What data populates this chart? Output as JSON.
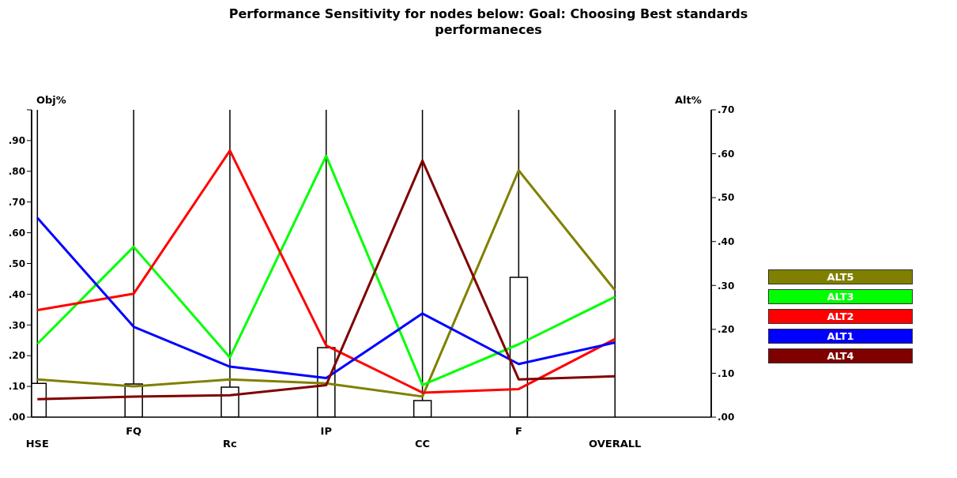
{
  "chart_data": {
    "type": "line",
    "title": "Performance Sensitivity for nodes below: Goal: Choosing Best standards performaneces",
    "ylabel": "Obj%",
    "y2label": "Alt%",
    "categories": [
      "HSE",
      "FQ",
      "Rc",
      "IP",
      "CC",
      "F",
      "OVERALL"
    ],
    "ylim": [
      0,
      1
    ],
    "yticks": [
      {
        "value": 0,
        "label": ".00"
      },
      {
        "value": 0.1,
        "label": ".10"
      },
      {
        "value": 0.2,
        "label": ".20"
      },
      {
        "value": 0.3,
        "label": ".30"
      },
      {
        "value": 0.4,
        "label": ".40"
      },
      {
        "value": 0.5,
        "label": ".50"
      },
      {
        "value": 0.6,
        "label": ".60"
      },
      {
        "value": 0.7,
        "label": ".70"
      },
      {
        "value": 0.8,
        "label": ".80"
      },
      {
        "value": 0.9,
        "label": ".90"
      },
      {
        "value": 1,
        "label": null
      }
    ],
    "y2lim": [
      0,
      0.7
    ],
    "y2ticks": [
      {
        "value": 0,
        "label": ".00"
      },
      {
        "value": 0.1,
        "label": ".10"
      },
      {
        "value": 0.2,
        "label": ".20"
      },
      {
        "value": 0.3,
        "label": ".30"
      },
      {
        "value": 0.4,
        "label": ".40"
      },
      {
        "value": 0.5,
        "label": ".50"
      },
      {
        "value": 0.6,
        "label": ".60"
      },
      {
        "value": 0.7,
        "label": ".70"
      }
    ],
    "grid": "x",
    "legend": "right",
    "marker": "none",
    "series": [
      {
        "type": "bar",
        "color": "#ffffff",
        "values": [
          0.11,
          0.108,
          0.098,
          0.226,
          0.054,
          0.455,
          null
        ]
      },
      {
        "axis": "y2",
        "name": "ALT5",
        "color": "#808000",
        "values": [
          0.086,
          0.07,
          0.086,
          0.077,
          0.047,
          0.562,
          0.289
        ]
      },
      {
        "axis": "y2",
        "name": "ALT3",
        "color": "#00ff00",
        "values": [
          0.167,
          0.388,
          0.136,
          0.595,
          0.073,
          0.166,
          0.274
        ]
      },
      {
        "axis": "y2",
        "name": "ALT2",
        "color": "#ff0000",
        "values": [
          0.244,
          0.281,
          0.607,
          0.163,
          0.056,
          0.064,
          0.178
        ]
      },
      {
        "axis": "y2",
        "name": "ALT1",
        "color": "#0000ff",
        "values": [
          0.454,
          0.206,
          0.115,
          0.089,
          0.236,
          0.121,
          0.17
        ]
      },
      {
        "axis": "y2",
        "name": "ALT4",
        "color": "#800000",
        "values": [
          0.041,
          0.047,
          0.05,
          0.073,
          0.584,
          0.086,
          0.093
        ]
      }
    ]
  }
}
